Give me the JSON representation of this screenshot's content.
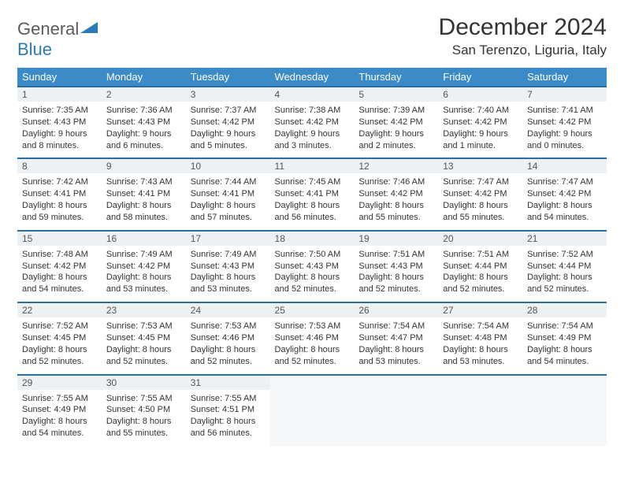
{
  "brand": {
    "part1": "General",
    "part2": "Blue"
  },
  "title": "December 2024",
  "location": "San Terenzo, Liguria, Italy",
  "colors": {
    "header_bg": "#3b8bc8",
    "header_text": "#ffffff",
    "daynum_bg": "#eef1f3",
    "daynum_border": "#2a6fa3",
    "logo_blue": "#2a7ab8",
    "logo_gray": "#5a5a5a"
  },
  "weekdays": [
    "Sunday",
    "Monday",
    "Tuesday",
    "Wednesday",
    "Thursday",
    "Friday",
    "Saturday"
  ],
  "weeks": [
    [
      {
        "n": "1",
        "sr": "7:35 AM",
        "ss": "4:43 PM",
        "dl": "9 hours and 8 minutes."
      },
      {
        "n": "2",
        "sr": "7:36 AM",
        "ss": "4:43 PM",
        "dl": "9 hours and 6 minutes."
      },
      {
        "n": "3",
        "sr": "7:37 AM",
        "ss": "4:42 PM",
        "dl": "9 hours and 5 minutes."
      },
      {
        "n": "4",
        "sr": "7:38 AM",
        "ss": "4:42 PM",
        "dl": "9 hours and 3 minutes."
      },
      {
        "n": "5",
        "sr": "7:39 AM",
        "ss": "4:42 PM",
        "dl": "9 hours and 2 minutes."
      },
      {
        "n": "6",
        "sr": "7:40 AM",
        "ss": "4:42 PM",
        "dl": "9 hours and 1 minute."
      },
      {
        "n": "7",
        "sr": "7:41 AM",
        "ss": "4:42 PM",
        "dl": "9 hours and 0 minutes."
      }
    ],
    [
      {
        "n": "8",
        "sr": "7:42 AM",
        "ss": "4:41 PM",
        "dl": "8 hours and 59 minutes."
      },
      {
        "n": "9",
        "sr": "7:43 AM",
        "ss": "4:41 PM",
        "dl": "8 hours and 58 minutes."
      },
      {
        "n": "10",
        "sr": "7:44 AM",
        "ss": "4:41 PM",
        "dl": "8 hours and 57 minutes."
      },
      {
        "n": "11",
        "sr": "7:45 AM",
        "ss": "4:41 PM",
        "dl": "8 hours and 56 minutes."
      },
      {
        "n": "12",
        "sr": "7:46 AM",
        "ss": "4:42 PM",
        "dl": "8 hours and 55 minutes."
      },
      {
        "n": "13",
        "sr": "7:47 AM",
        "ss": "4:42 PM",
        "dl": "8 hours and 55 minutes."
      },
      {
        "n": "14",
        "sr": "7:47 AM",
        "ss": "4:42 PM",
        "dl": "8 hours and 54 minutes."
      }
    ],
    [
      {
        "n": "15",
        "sr": "7:48 AM",
        "ss": "4:42 PM",
        "dl": "8 hours and 54 minutes."
      },
      {
        "n": "16",
        "sr": "7:49 AM",
        "ss": "4:42 PM",
        "dl": "8 hours and 53 minutes."
      },
      {
        "n": "17",
        "sr": "7:49 AM",
        "ss": "4:43 PM",
        "dl": "8 hours and 53 minutes."
      },
      {
        "n": "18",
        "sr": "7:50 AM",
        "ss": "4:43 PM",
        "dl": "8 hours and 52 minutes."
      },
      {
        "n": "19",
        "sr": "7:51 AM",
        "ss": "4:43 PM",
        "dl": "8 hours and 52 minutes."
      },
      {
        "n": "20",
        "sr": "7:51 AM",
        "ss": "4:44 PM",
        "dl": "8 hours and 52 minutes."
      },
      {
        "n": "21",
        "sr": "7:52 AM",
        "ss": "4:44 PM",
        "dl": "8 hours and 52 minutes."
      }
    ],
    [
      {
        "n": "22",
        "sr": "7:52 AM",
        "ss": "4:45 PM",
        "dl": "8 hours and 52 minutes."
      },
      {
        "n": "23",
        "sr": "7:53 AM",
        "ss": "4:45 PM",
        "dl": "8 hours and 52 minutes."
      },
      {
        "n": "24",
        "sr": "7:53 AM",
        "ss": "4:46 PM",
        "dl": "8 hours and 52 minutes."
      },
      {
        "n": "25",
        "sr": "7:53 AM",
        "ss": "4:46 PM",
        "dl": "8 hours and 52 minutes."
      },
      {
        "n": "26",
        "sr": "7:54 AM",
        "ss": "4:47 PM",
        "dl": "8 hours and 53 minutes."
      },
      {
        "n": "27",
        "sr": "7:54 AM",
        "ss": "4:48 PM",
        "dl": "8 hours and 53 minutes."
      },
      {
        "n": "28",
        "sr": "7:54 AM",
        "ss": "4:49 PM",
        "dl": "8 hours and 54 minutes."
      }
    ],
    [
      {
        "n": "29",
        "sr": "7:55 AM",
        "ss": "4:49 PM",
        "dl": "8 hours and 54 minutes."
      },
      {
        "n": "30",
        "sr": "7:55 AM",
        "ss": "4:50 PM",
        "dl": "8 hours and 55 minutes."
      },
      {
        "n": "31",
        "sr": "7:55 AM",
        "ss": "4:51 PM",
        "dl": "8 hours and 56 minutes."
      },
      null,
      null,
      null,
      null
    ]
  ],
  "labels": {
    "sunrise": "Sunrise: ",
    "sunset": "Sunset: ",
    "daylight": "Daylight: "
  }
}
